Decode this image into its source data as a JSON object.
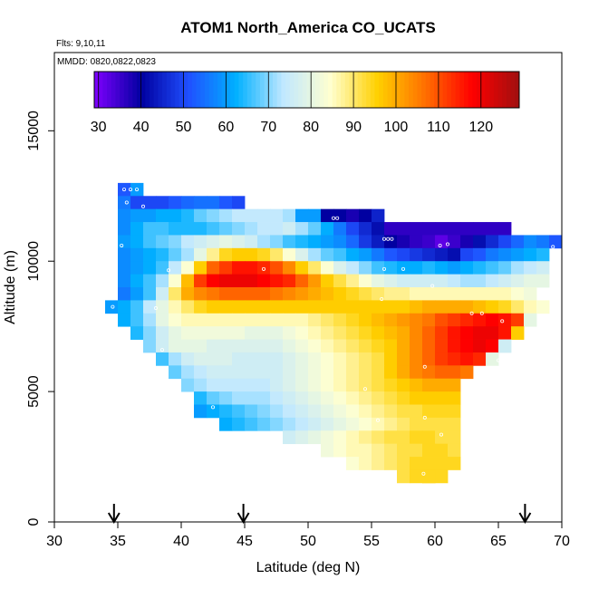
{
  "chart_data": {
    "type": "heatmap",
    "title": "ATOM1 North_America CO_UCATS",
    "annotations": [
      "Flts: 9,10,11",
      "MMDD: 0820,0822,0823"
    ],
    "xlabel": "Latitude (deg N)",
    "ylabel": "Altitude (m)",
    "xlim": [
      30,
      70
    ],
    "ylim": [
      0,
      18000
    ],
    "xticks": [
      30,
      35,
      40,
      45,
      50,
      55,
      60,
      65,
      70
    ],
    "yticks": [
      0,
      5000,
      10000,
      15000
    ],
    "colorbar": {
      "range": [
        29,
        129
      ],
      "ticks": [
        30,
        40,
        50,
        60,
        70,
        80,
        90,
        100,
        110,
        120
      ],
      "colors": [
        "#8000ff",
        "#0000a0",
        "#2050ff",
        "#00b0ff",
        "#c0e8ff",
        "#ffffd0",
        "#ffd000",
        "#ff7000",
        "#ff0000",
        "#a01010"
      ]
    },
    "cell_size": {
      "lat": 1,
      "alt": 500
    },
    "arrows_latitude": [
      34.7,
      44.9,
      67.1
    ],
    "grid": false,
    "rows": [
      {
        "alt": 12750,
        "lat0": 35,
        "values": [
          52,
          60
        ]
      },
      {
        "alt": 12250,
        "lat0": 35,
        "values": [
          56,
          50,
          50,
          50,
          52,
          54,
          55,
          55,
          52,
          50
        ]
      },
      {
        "alt": 11750,
        "lat0": 35,
        "values": [
          58,
          60,
          60,
          62,
          62,
          64,
          68,
          70,
          72,
          74,
          74,
          74,
          74,
          72,
          60,
          60,
          40,
          40,
          38,
          40,
          45
        ]
      },
      {
        "alt": 11250,
        "lat0": 35,
        "values": [
          58,
          62,
          66,
          66,
          64,
          64,
          64,
          66,
          68,
          70,
          72,
          74,
          74,
          76,
          72,
          68,
          62,
          56,
          50,
          46,
          42,
          36,
          36,
          36,
          36,
          36,
          36,
          36,
          36,
          36,
          36
        ]
      },
      {
        "alt": 10750,
        "lat0": 35,
        "values": [
          60,
          62,
          66,
          68,
          70,
          74,
          76,
          78,
          80,
          78,
          76,
          72,
          70,
          66,
          64,
          62,
          60,
          58,
          54,
          48,
          44,
          40,
          38,
          36,
          35,
          32,
          35,
          38,
          42,
          46,
          50,
          54,
          58,
          56,
          52
        ]
      },
      {
        "alt": 10250,
        "lat0": 35,
        "values": [
          58,
          60,
          62,
          64,
          68,
          72,
          80,
          88,
          94,
          96,
          96,
          94,
          90,
          84,
          78,
          72,
          68,
          66,
          62,
          60,
          56,
          52,
          50,
          48,
          46,
          44,
          42,
          50,
          52,
          56,
          58,
          60,
          62,
          64
        ]
      },
      {
        "alt": 9750,
        "lat0": 35,
        "values": [
          58,
          60,
          62,
          66,
          74,
          84,
          96,
          108,
          112,
          116,
          116,
          114,
          110,
          104,
          96,
          90,
          84,
          78,
          74,
          70,
          66,
          64,
          62,
          62,
          64,
          62,
          60,
          62,
          64,
          66,
          68,
          72,
          74,
          76
        ]
      },
      {
        "alt": 9250,
        "lat0": 35,
        "values": [
          58,
          62,
          66,
          72,
          84,
          98,
          112,
          118,
          120,
          120,
          120,
          118,
          116,
          114,
          108,
          102,
          96,
          92,
          88,
          84,
          80,
          78,
          76,
          76,
          76,
          76,
          74,
          72,
          72,
          74,
          76,
          78,
          80,
          80
        ]
      },
      {
        "alt": 8750,
        "lat0": 35,
        "values": [
          56,
          60,
          66,
          76,
          90,
          100,
          104,
          106,
          108,
          108,
          108,
          108,
          106,
          104,
          102,
          100,
          98,
          96,
          94,
          92,
          90,
          88,
          88,
          86,
          86,
          86,
          86,
          86,
          86,
          86,
          86,
          84,
          82
        ]
      },
      {
        "alt": 8250,
        "lat0": 34,
        "values": [
          60,
          62,
          66,
          74,
          80,
          86,
          90,
          94,
          96,
          96,
          96,
          96,
          96,
          96,
          96,
          96,
          96,
          96,
          96,
          96,
          96,
          96,
          96,
          96,
          98,
          100,
          100,
          100,
          100,
          98,
          96,
          94,
          90,
          86,
          84
        ]
      },
      {
        "alt": 7750,
        "lat0": 35,
        "values": [
          62,
          66,
          72,
          80,
          84,
          86,
          86,
          86,
          86,
          86,
          86,
          86,
          86,
          86,
          86,
          88,
          90,
          92,
          94,
          96,
          98,
          100,
          102,
          104,
          106,
          110,
          112,
          114,
          116,
          118,
          116,
          112,
          80
        ]
      },
      {
        "alt": 7250,
        "lat0": 36,
        "values": [
          64,
          70,
          76,
          80,
          82,
          82,
          82,
          82,
          82,
          80,
          80,
          80,
          82,
          84,
          86,
          88,
          90,
          92,
          94,
          96,
          98,
          100,
          104,
          108,
          112,
          116,
          118,
          120,
          120,
          116,
          96
        ]
      },
      {
        "alt": 6750,
        "lat0": 37,
        "values": [
          70,
          76,
          80,
          80,
          80,
          78,
          78,
          78,
          78,
          78,
          78,
          80,
          82,
          84,
          86,
          88,
          90,
          92,
          94,
          96,
          100,
          104,
          108,
          112,
          116,
          118,
          120,
          118,
          76
        ]
      },
      {
        "alt": 6250,
        "lat0": 38,
        "values": [
          66,
          72,
          76,
          78,
          78,
          78,
          76,
          76,
          76,
          76,
          78,
          80,
          82,
          84,
          86,
          88,
          90,
          92,
          96,
          100,
          104,
          108,
          112,
          114,
          116,
          114,
          80
        ]
      },
      {
        "alt": 5750,
        "lat0": 39,
        "values": [
          68,
          72,
          74,
          76,
          76,
          76,
          76,
          76,
          76,
          78,
          80,
          82,
          84,
          86,
          88,
          90,
          92,
          96,
          100,
          104,
          106,
          108,
          108,
          106
        ]
      },
      {
        "alt": 5250,
        "lat0": 40,
        "values": [
          70,
          72,
          74,
          74,
          74,
          74,
          74,
          76,
          78,
          80,
          82,
          84,
          86,
          88,
          90,
          92,
          94,
          96,
          98,
          100,
          100,
          100
        ]
      },
      {
        "alt": 4750,
        "lat0": 41,
        "values": [
          64,
          68,
          70,
          72,
          72,
          72,
          74,
          76,
          78,
          80,
          82,
          84,
          86,
          88,
          90,
          92,
          94,
          96,
          96,
          96,
          96
        ]
      },
      {
        "alt": 4250,
        "lat0": 41,
        "values": [
          60,
          62,
          64,
          66,
          68,
          70,
          72,
          74,
          76,
          78,
          80,
          82,
          84,
          86,
          88,
          90,
          92,
          92,
          94,
          94,
          94
        ]
      },
      {
        "alt": 3750,
        "lat0": 43,
        "values": [
          62,
          64,
          66,
          68,
          70,
          72,
          74,
          76,
          78,
          80,
          82,
          84,
          86,
          88,
          90,
          92,
          92,
          92,
          92
        ]
      },
      {
        "alt": 3250,
        "lat0": 48,
        "values": [
          76,
          78,
          80,
          82,
          84,
          86,
          88,
          90,
          92,
          92,
          94,
          94,
          92,
          92
        ]
      },
      {
        "alt": 2750,
        "lat0": 51,
        "values": [
          82,
          84,
          86,
          86,
          88,
          90,
          92,
          92,
          94,
          94,
          92
        ]
      },
      {
        "alt": 2250,
        "lat0": 53,
        "values": [
          84,
          86,
          88,
          90,
          92,
          94,
          94,
          94,
          94
        ]
      },
      {
        "alt": 1750,
        "lat0": 57,
        "values": [
          92,
          94,
          96,
          94
        ]
      },
      {
        "alt": 1750,
        "lat0": 59,
        "values": [
          94
        ]
      }
    ],
    "points": [
      [
        35.5,
        12750
      ],
      [
        36.0,
        12750
      ],
      [
        36.5,
        12750
      ],
      [
        35.7,
        12250
      ],
      [
        37.0,
        12100
      ],
      [
        35.3,
        10600
      ],
      [
        39.0,
        9650
      ],
      [
        34.6,
        8250
      ],
      [
        38.0,
        8200
      ],
      [
        52.0,
        11650
      ],
      [
        52.3,
        11650
      ],
      [
        56.0,
        10850
      ],
      [
        56.3,
        10850
      ],
      [
        56.6,
        10850
      ],
      [
        60.4,
        10600
      ],
      [
        61.0,
        10650
      ],
      [
        69.3,
        10550
      ],
      [
        46.5,
        9700
      ],
      [
        56.0,
        9700
      ],
      [
        57.5,
        9700
      ],
      [
        55.8,
        8550
      ],
      [
        59.8,
        9050
      ],
      [
        62.9,
        8000
      ],
      [
        63.7,
        8000
      ],
      [
        65.3,
        7700
      ],
      [
        65.0,
        6200
      ],
      [
        38.5,
        6600
      ],
      [
        54.5,
        5100
      ],
      [
        59.2,
        5950
      ],
      [
        42.5,
        4400
      ],
      [
        55.5,
        3900
      ],
      [
        59.2,
        4000
      ],
      [
        60.5,
        3350
      ],
      [
        59.1,
        1850
      ]
    ]
  }
}
